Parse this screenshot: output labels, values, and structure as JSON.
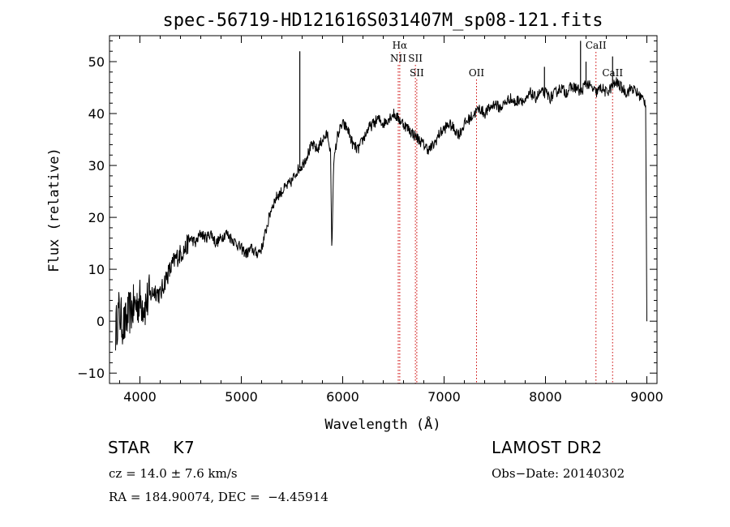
{
  "chart_data": {
    "type": "line",
    "title": "spec-56719-HD121616S031407M_sp08-121.fits",
    "xlabel": "Wavelength (Å)",
    "ylabel": "Flux (relative)",
    "xlim": [
      3700,
      9100
    ],
    "ylim": [
      -12,
      55
    ],
    "x_ticks": [
      4000,
      5000,
      6000,
      7000,
      8000,
      9000
    ],
    "y_ticks": [
      -10,
      0,
      10,
      20,
      30,
      40,
      50
    ],
    "grid": false,
    "line_color": "#000000",
    "marker_color": "#cc0000",
    "series": [
      {
        "x": [
          3760,
          3790,
          3820,
          3850,
          3880,
          3910,
          3950,
          4000,
          4050,
          4100,
          4150,
          4200,
          4250,
          4300,
          4350,
          4400,
          4450,
          4500,
          4550,
          4600,
          4650,
          4700,
          4750,
          4800,
          4850,
          4900,
          4950,
          5000,
          5050,
          5100,
          5150,
          5200,
          5250,
          5300,
          5350,
          5400,
          5450,
          5500,
          5550,
          5600,
          5650,
          5700,
          5750,
          5800,
          5850,
          5880,
          5893,
          5910,
          5950,
          6000,
          6050,
          6100,
          6150,
          6200,
          6250,
          6300,
          6350,
          6400,
          6450,
          6500,
          6550,
          6600,
          6650,
          6700,
          6750,
          6800,
          6850,
          6900,
          6950,
          7000,
          7050,
          7100,
          7150,
          7200,
          7250,
          7300,
          7350,
          7400,
          7450,
          7500,
          7550,
          7600,
          7650,
          7700,
          7750,
          7800,
          7850,
          7900,
          7950,
          8000,
          8050,
          8100,
          8150,
          8200,
          8250,
          8300,
          8350,
          8400,
          8450,
          8500,
          8550,
          8600,
          8650,
          8700,
          8750,
          8800,
          8850,
          8900,
          8950,
          8990,
          9000
        ],
        "y": [
          -2,
          2,
          0,
          -1,
          1,
          2,
          3,
          4,
          3,
          5,
          6,
          5,
          8,
          10,
          12,
          13,
          14,
          16,
          15,
          17,
          16,
          17,
          15,
          16,
          17,
          16,
          15,
          14,
          13,
          14,
          13,
          14,
          18,
          22,
          24,
          25,
          26,
          27,
          29,
          30,
          32,
          34,
          33,
          35,
          36,
          33,
          13,
          30,
          36,
          38,
          37,
          34,
          33,
          35,
          37,
          38,
          39,
          38,
          39,
          40,
          39,
          38,
          37,
          36,
          35,
          34,
          33,
          34,
          36,
          37,
          38,
          37,
          36,
          38,
          39,
          40,
          41,
          40,
          41,
          42,
          41,
          42,
          43,
          42,
          43,
          42,
          44,
          43,
          44,
          44,
          43,
          44,
          45,
          44,
          45,
          45,
          44,
          46,
          45,
          44,
          45,
          44,
          45,
          46,
          45,
          44,
          45,
          44,
          43,
          42,
          0
        ]
      }
    ],
    "spikes": [
      {
        "x": 5577,
        "y": 52
      },
      {
        "x": 7990,
        "y": 49
      },
      {
        "x": 8346,
        "y": 54
      },
      {
        "x": 8400,
        "y": 50
      },
      {
        "x": 8662,
        "y": 51
      }
    ],
    "lines": [
      {
        "name": "Hα",
        "x": 6563,
        "label_y": 52.5
      },
      {
        "name": "NII",
        "x": 6548,
        "label_y": 50
      },
      {
        "name": "SII",
        "x": 6717,
        "label_y": 50
      },
      {
        "name": "SII",
        "x": 6731,
        "label_y": 47.2
      },
      {
        "name": "OII",
        "x": 7320,
        "label_y": 47.2
      },
      {
        "name": "CaII",
        "x": 8498,
        "label_y": 52.5
      },
      {
        "name": "CaII",
        "x": 8662,
        "label_y": 47.2
      }
    ]
  },
  "info": {
    "object": "STAR    K7",
    "survey": "LAMOST DR2",
    "redshift": "cz = 14.0 ± 7.6 km/s",
    "obs_date": "Obs−Date: 20140302",
    "coords": "RA = 184.90074, DEC =  −4.45914"
  }
}
